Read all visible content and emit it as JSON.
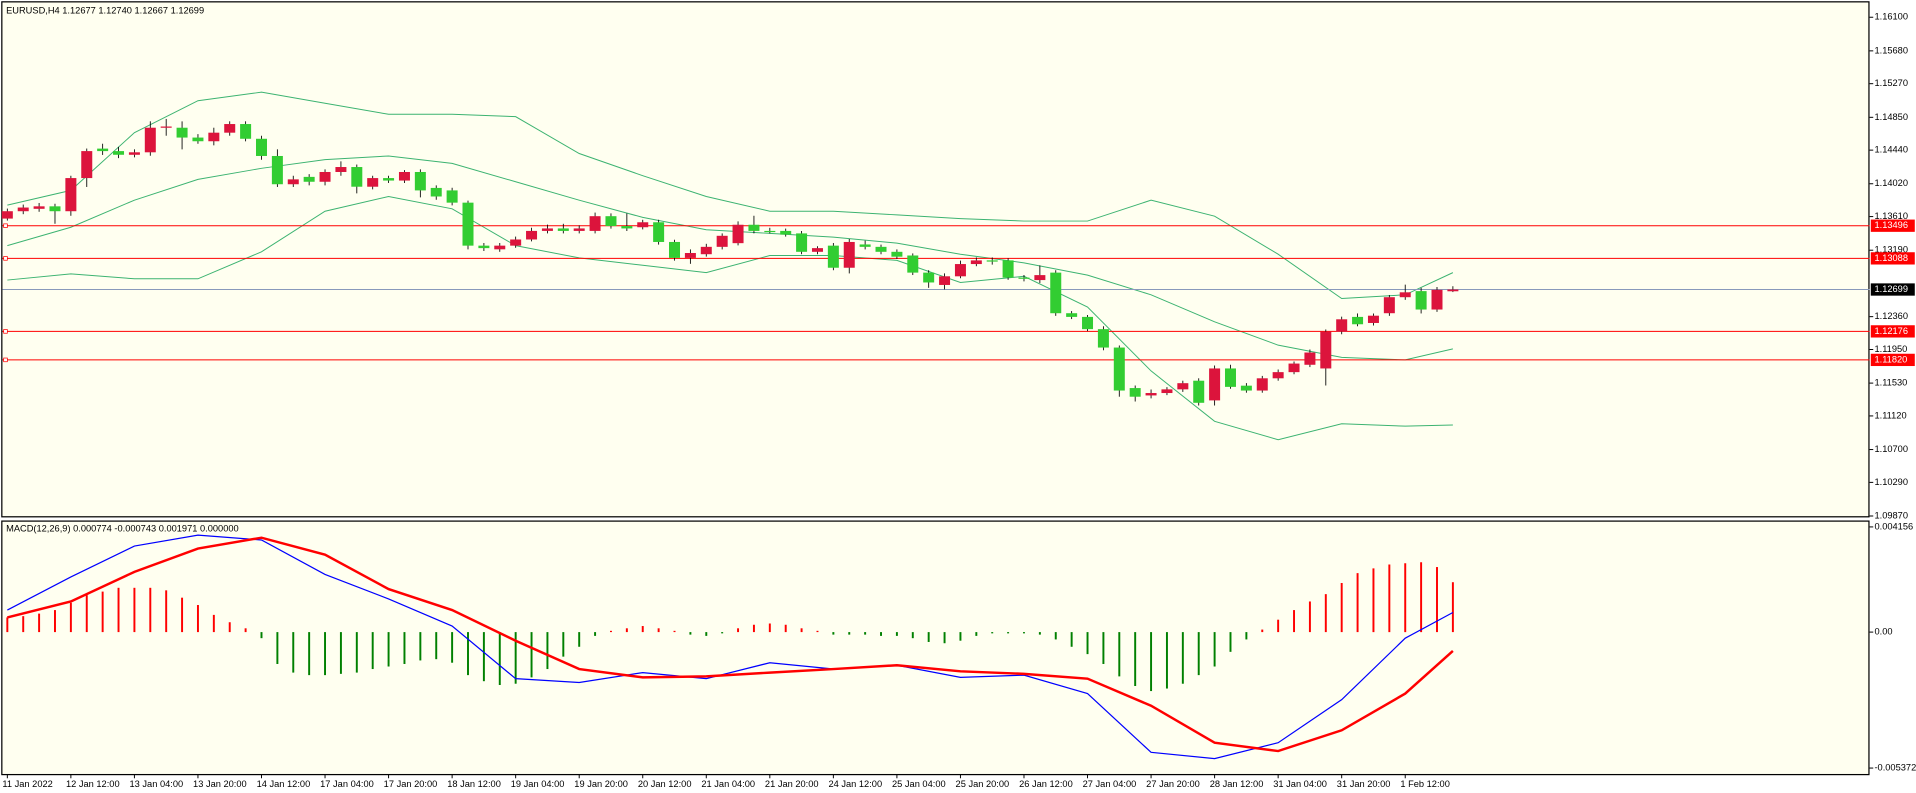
{
  "chart_data": [
    {
      "type": "candlestick",
      "title": "EURUSD,H4  1.12677 1.12740 1.12667 1.12699",
      "categories": [
        "11 Jan 2022",
        null,
        null,
        null,
        "12 Jan 12:00",
        null,
        null,
        null,
        "13 Jan 04:00",
        null,
        null,
        null,
        "13 Jan 20:00",
        null,
        null,
        null,
        "14 Jan 12:00",
        null,
        null,
        null,
        "17 Jan 04:00",
        null,
        null,
        null,
        "17 Jan 20:00",
        null,
        null,
        null,
        "18 Jan 12:00",
        null,
        null,
        null,
        "19 Jan 04:00",
        null,
        null,
        null,
        "19 Jan 20:00",
        null,
        null,
        null,
        "20 Jan 12:00",
        null,
        null,
        null,
        "21 Jan 04:00",
        null,
        null,
        null,
        "21 Jan 20:00",
        null,
        null,
        null,
        "24 Jan 12:00",
        null,
        null,
        null,
        "25 Jan 04:00",
        null,
        null,
        null,
        "25 Jan 20:00",
        null,
        null,
        null,
        "26 Jan 12:00",
        null,
        null,
        null,
        "27 Jan 04:00",
        null,
        null,
        null,
        "27 Jan 20:00",
        null,
        null,
        null,
        "28 Jan 12:00",
        null,
        null,
        null,
        "31 Jan 04:00",
        null,
        null,
        null,
        "31 Jan 20:00",
        null,
        null,
        null,
        "1 Feb 12:00",
        null,
        null,
        null
      ],
      "open": [
        1.13585,
        1.13677,
        1.13707,
        1.13738,
        1.13677,
        1.14091,
        1.14459,
        1.14428,
        1.14382,
        1.14413,
        1.1472,
        1.1472,
        1.14597,
        1.14551,
        1.14658,
        1.14766,
        1.14582,
        1.14367,
        1.14014,
        1.14106,
        1.14045,
        1.14167,
        1.14229,
        1.13983,
        1.14091,
        1.1406,
        1.14167,
        1.13968,
        1.13937,
        1.13784,
        1.13247,
        1.13201,
        1.13247,
        1.13324,
        1.13431,
        1.13462,
        1.13431,
        1.13431,
        1.13615,
        1.13492,
        1.13477,
        1.13539,
        1.13293,
        1.13094,
        1.1314,
        1.13232,
        1.13278,
        1.13508,
        1.13431,
        1.13431,
        1.134,
        1.1317,
        1.13247,
        1.12971,
        1.13262,
        1.13232,
        1.1317,
        1.13124,
        1.1291,
        1.12756,
        1.12864,
        1.13017,
        1.13063,
        1.13063,
        1.12848,
        1.12817,
        1.1291,
        1.12403,
        1.12357,
        1.12204,
        1.11974,
        1.11468,
        1.11376,
        1.11406,
        1.11452,
        1.1156,
        1.11314,
        1.11713,
        1.11498,
        1.11437,
        1.1159,
        1.11667,
        1.11759,
        1.11713,
        1.12173,
        1.12357,
        1.12281,
        1.12403,
        1.12603,
        1.12679,
        1.12449,
        1.12677
      ],
      "high": [
        1.1371,
        1.1376,
        1.1378,
        1.1377,
        1.1412,
        1.1446,
        1.1452,
        1.1448,
        1.1445,
        1.148,
        1.1483,
        1.148,
        1.1464,
        1.1472,
        1.148,
        1.148,
        1.1462,
        1.1445,
        1.1412,
        1.1414,
        1.142,
        1.143,
        1.1426,
        1.1412,
        1.1412,
        1.1419,
        1.142,
        1.14,
        1.1397,
        1.1381,
        1.1328,
        1.1328,
        1.1336,
        1.1347,
        1.1351,
        1.1352,
        1.135,
        1.1366,
        1.1365,
        1.1365,
        1.1357,
        1.1357,
        1.1332,
        1.132,
        1.1327,
        1.134,
        1.1355,
        1.1362,
        1.1347,
        1.1346,
        1.1343,
        1.1324,
        1.1328,
        1.1333,
        1.1331,
        1.1326,
        1.132,
        1.1315,
        1.1294,
        1.129,
        1.1306,
        1.131,
        1.131,
        1.1309,
        1.1288,
        1.13,
        1.1294,
        1.1243,
        1.1238,
        1.1224,
        1.12,
        1.115,
        1.1145,
        1.1148,
        1.1156,
        1.1159,
        1.1175,
        1.1176,
        1.1153,
        1.1162,
        1.117,
        1.118,
        1.1195,
        1.122,
        1.1236,
        1.124,
        1.124,
        1.1263,
        1.1276,
        1.1272,
        1.1273,
        1.1274
      ],
      "low": [
        1.1356,
        1.1364,
        1.1367,
        1.1352,
        1.1362,
        1.1398,
        1.1438,
        1.1434,
        1.1435,
        1.1437,
        1.1462,
        1.1445,
        1.1452,
        1.145,
        1.1462,
        1.1455,
        1.1432,
        1.1398,
        1.1398,
        1.14,
        1.14,
        1.1412,
        1.139,
        1.1395,
        1.1403,
        1.1403,
        1.1385,
        1.1382,
        1.1375,
        1.132,
        1.1318,
        1.1317,
        1.1322,
        1.133,
        1.134,
        1.134,
        1.134,
        1.134,
        1.1346,
        1.1343,
        1.1345,
        1.1326,
        1.1306,
        1.1302,
        1.1311,
        1.132,
        1.1325,
        1.134,
        1.134,
        1.1336,
        1.1314,
        1.1314,
        1.1294,
        1.129,
        1.132,
        1.1314,
        1.1308,
        1.1288,
        1.1272,
        1.127,
        1.1284,
        1.1299,
        1.1301,
        1.1282,
        1.128,
        1.1278,
        1.1237,
        1.1233,
        1.1218,
        1.1194,
        1.1136,
        1.113,
        1.1134,
        1.1138,
        1.1142,
        1.1125,
        1.1125,
        1.1146,
        1.1141,
        1.1141,
        1.1156,
        1.1164,
        1.1173,
        1.115,
        1.1214,
        1.1224,
        1.1225,
        1.1237,
        1.1257,
        1.124,
        1.1242,
        1.12667
      ],
      "close": [
        1.13677,
        1.13723,
        1.13738,
        1.13677,
        1.14091,
        1.14428,
        1.14428,
        1.14382,
        1.14413,
        1.1472,
        1.14735,
        1.14597,
        1.14551,
        1.14658,
        1.14766,
        1.14582,
        1.14367,
        1.14014,
        1.14075,
        1.14045,
        1.14167,
        1.14229,
        1.13983,
        1.14091,
        1.1406,
        1.14167,
        1.13937,
        1.13861,
        1.13784,
        1.13247,
        1.13216,
        1.13247,
        1.13324,
        1.13431,
        1.13462,
        1.13431,
        1.13462,
        1.13615,
        1.13492,
        1.13462,
        1.13539,
        1.13293,
        1.13094,
        1.13155,
        1.13232,
        1.1337,
        1.13508,
        1.13431,
        1.1342,
        1.13385,
        1.1317,
        1.13216,
        1.12971,
        1.13293,
        1.13232,
        1.1317,
        1.13109,
        1.1291,
        1.12787,
        1.12864,
        1.13017,
        1.13063,
        1.13048,
        1.12848,
        1.12833,
        1.12879,
        1.12403,
        1.12357,
        1.12204,
        1.11974,
        1.11437,
        1.1136,
        1.11406,
        1.11452,
        1.11529,
        1.11284,
        1.11713,
        1.11483,
        1.11437,
        1.1159,
        1.11667,
        1.11774,
        1.11912,
        1.12173,
        1.12327,
        1.12265,
        1.12372,
        1.12603,
        1.12664,
        1.12449,
        1.12695,
        1.12699
      ],
      "up_color": "#dc143c",
      "down_color": "#32cd32",
      "wick_color": "#000000",
      "bands": [
        {
          "color": "#3cb371",
          "x": [
            0,
            4,
            8,
            12,
            16,
            20,
            24,
            28,
            32,
            36,
            40,
            44,
            48,
            52,
            56,
            60,
            64,
            68,
            72,
            76,
            80,
            84,
            88,
            91
          ],
          "values": [
            1.13753,
            1.13937,
            1.14658,
            1.15057,
            1.15164,
            1.15026,
            1.14888,
            1.14888,
            1.14858,
            1.14398,
            1.14121,
            1.13861,
            1.13677,
            1.13677,
            1.13631,
            1.13585,
            1.13554,
            1.13554,
            1.13815,
            1.13615,
            1.1314,
            1.12587,
            1.12633,
            1.1291
          ]
        },
        {
          "color": "#3cb371",
          "x": [
            0,
            4,
            8,
            12,
            16,
            20,
            24,
            28,
            32,
            36,
            40,
            44,
            48,
            52,
            56,
            60,
            64,
            68,
            72,
            76,
            80,
            84,
            88,
            91
          ],
          "values": [
            1.13247,
            1.13477,
            1.13815,
            1.14075,
            1.14213,
            1.14321,
            1.14367,
            1.14275,
            1.14045,
            1.13815,
            1.136,
            1.13446,
            1.134,
            1.13354,
            1.13278,
            1.1314,
            1.13032,
            1.12879,
            1.12633,
            1.12296,
            1.12004,
            1.11851,
            1.1182,
            1.11958
          ]
        },
        {
          "color": "#3cb371",
          "x": [
            0,
            4,
            8,
            12,
            16,
            20,
            24,
            28,
            32,
            36,
            40,
            44,
            48,
            52,
            56,
            60,
            64,
            68,
            72,
            76,
            80,
            84,
            88,
            91
          ],
          "values": [
            1.12817,
            1.12894,
            1.12833,
            1.12833,
            1.1317,
            1.13677,
            1.13861,
            1.13707,
            1.13247,
            1.13094,
            1.13002,
            1.1291,
            1.13124,
            1.13124,
            1.13063,
            1.12787,
            1.12864,
            1.1248,
            1.11682,
            1.11053,
            1.10823,
            1.11022,
            1.10992,
            1.11007
          ]
        }
      ],
      "levels": [
        {
          "value": 1.13496
        },
        {
          "value": 1.13088
        },
        {
          "value": 1.12176
        },
        {
          "value": 1.1182,
          "label": "1.11820"
        }
      ],
      "level_color": "#ff0000",
      "bid": 1.12699,
      "bid_color": "#8899bb",
      "ylim": [
        1.0986,
        1.163
      ],
      "yticks": [
        {
          "value": 1.161,
          "label": "1.16100"
        },
        {
          "value": 1.1568,
          "label": "1.15680"
        },
        {
          "value": 1.1527,
          "label": "1.15270"
        },
        {
          "value": 1.1485,
          "label": "1.14850"
        },
        {
          "value": 1.1444,
          "label": "1.14440"
        },
        {
          "value": 1.1402,
          "label": "1.14020"
        },
        {
          "value": 1.1361,
          "label": "1.13610"
        },
        {
          "value": 1.1319,
          "label": "1.13190"
        },
        {
          "value": 1.1236,
          "label": "1.12360"
        },
        {
          "value": 1.1195,
          "label": "1.11950"
        },
        {
          "value": 1.1153,
          "label": "1.11530"
        },
        {
          "value": 1.1112,
          "label": "1.11120"
        },
        {
          "value": 1.107,
          "label": "1.10700"
        },
        {
          "value": 1.1029,
          "label": "1.10290"
        },
        {
          "value": 1.0987,
          "label": "1.09870"
        }
      ]
    },
    {
      "type": "macd",
      "title": "MACD(12,26,9) 0.000774 -0.000743 0.001971 0.000000",
      "histogram": [
        0.00058,
        0.00063,
        0.00073,
        0.00087,
        0.00116,
        0.00146,
        0.0016,
        0.00175,
        0.00175,
        0.00175,
        0.00165,
        0.00136,
        0.00107,
        0.00068,
        0.00039,
        0.00015,
        -0.00024,
        -0.00126,
        -0.0016,
        -0.0017,
        -0.0017,
        -0.00165,
        -0.0016,
        -0.00146,
        -0.00136,
        -0.00126,
        -0.00112,
        -0.00107,
        -0.00121,
        -0.0017,
        -0.00194,
        -0.00209,
        -0.00204,
        -0.00179,
        -0.00146,
        -0.00097,
        -0.00058,
        -0.00015,
        5e-05,
        0.00015,
        0.00024,
        0.00015,
        5e-05,
        -0.0001,
        -0.00015,
        -5e-05,
        0.00015,
        0.00029,
        0.00034,
        0.00029,
        0.00015,
        5e-05,
        -0.0001,
        -0.0001,
        -0.0001,
        -0.00015,
        -0.00015,
        -0.00024,
        -0.00039,
        -0.00044,
        -0.00034,
        -0.00015,
        -5e-05,
        -5e-05,
        -5e-05,
        -0.0001,
        -0.00029,
        -0.00058,
        -0.00087,
        -0.00126,
        -0.00175,
        -0.00213,
        -0.00233,
        -0.00223,
        -0.00204,
        -0.0017,
        -0.00136,
        -0.00078,
        -0.00029,
        0.0001,
        0.00049,
        0.00087,
        0.00121,
        0.0015,
        0.00194,
        0.00233,
        0.00252,
        0.00267,
        0.00272,
        0.00276,
        0.00257,
        0.001971
      ],
      "positive_color": "#ff0000",
      "negative_color": "#008000",
      "series": [
        {
          "color": "#0000ff",
          "width": 1,
          "x": [
            0,
            4,
            8,
            12,
            16,
            20,
            24,
            28,
            32,
            36,
            40,
            44,
            48,
            52,
            56,
            60,
            64,
            68,
            72,
            76,
            80,
            84,
            88,
            91
          ],
          "values": [
            0.00087,
            0.00218,
            0.0034,
            0.00383,
            0.00364,
            0.00228,
            0.00131,
            0.00024,
            -0.00184,
            -0.00199,
            -0.0016,
            -0.00184,
            -0.00121,
            -0.00146,
            -0.00131,
            -0.00179,
            -0.0017,
            -0.00243,
            -0.00475,
            -0.005,
            -0.00437,
            -0.00267,
            -0.00024,
            0.000774
          ]
        },
        {
          "color": "#ff0000",
          "width": 2,
          "x": [
            0,
            4,
            8,
            12,
            16,
            20,
            24,
            28,
            32,
            36,
            40,
            44,
            48,
            52,
            56,
            60,
            64,
            68,
            72,
            76,
            80,
            84,
            88,
            91
          ],
          "values": [
            0.00058,
            0.00121,
            0.00238,
            0.0033,
            0.00373,
            0.00306,
            0.0017,
            0.00087,
            -0.00034,
            -0.00146,
            -0.00179,
            -0.00175,
            -0.0016,
            -0.00146,
            -0.00131,
            -0.00155,
            -0.00165,
            -0.00184,
            -0.00291,
            -0.00437,
            -0.0047,
            -0.00388,
            -0.00243,
            -0.000743
          ]
        }
      ],
      "ylim": [
        -0.00563,
        0.00441
      ],
      "yticks": [
        0.004156,
        {
          "value": 0,
          "label": "0.00"
        },
        -0.005372
      ]
    }
  ]
}
